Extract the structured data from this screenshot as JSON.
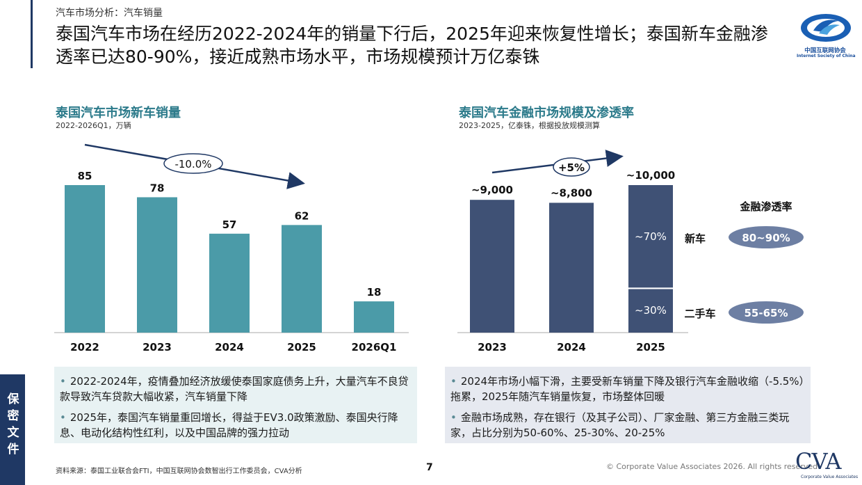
{
  "header": {
    "section_label": "汽车市场分析：汽车销量",
    "headline": "泰国汽车市场在经历2022-2024年的销量下行后，2025年迎来恢复性增长；泰国新车金融渗透率已达80-90%，接近成熟市场水平，市场规模预计万亿泰铢"
  },
  "logo": {
    "name_cn": "中国互联网协会",
    "name_en": "Internet Society of China"
  },
  "colors": {
    "left_bar": "#4b9ba8",
    "right_bar": "#3f5175",
    "pill": "#6d7fa3",
    "title_teal": "#2b7a8a",
    "navy": "#1f3864"
  },
  "chart_data": [
    {
      "type": "bar",
      "title": "泰国汽车市场新车销量",
      "subtitle": "2022-2026Q1，万辆",
      "categories": [
        "2022",
        "2023",
        "2024",
        "2025",
        "2026Q1"
      ],
      "values": [
        85,
        78,
        57,
        62,
        18
      ],
      "data_labels": [
        "85",
        "78",
        "57",
        "62",
        "18"
      ],
      "trend_label": "-10.0%",
      "grid": false,
      "legend": "none"
    },
    {
      "type": "bar",
      "title": "泰国汽车金融市场规模及渗透率",
      "subtitle": "2023-2025，亿泰铢，根据投放规模测算",
      "categories": [
        "2023",
        "2024",
        "2025"
      ],
      "values": [
        9000,
        8800,
        10000
      ],
      "data_labels": [
        "~9,000",
        "~8,800",
        "~10,000"
      ],
      "trend_label": "+5%",
      "split_2025": [
        {
          "label": "~70%",
          "share": 0.7
        },
        {
          "label": "~30%",
          "share": 0.3
        }
      ],
      "penetration_header": "金融渗透率",
      "penetration": [
        {
          "segment": "新车",
          "rate": "80~90%"
        },
        {
          "segment": "二手车",
          "rate": "55-65%"
        }
      ],
      "grid": false,
      "legend": "none"
    }
  ],
  "notes_left": [
    "2022-2024年，疫情叠加经济放缓使泰国家庭债务上升，大量汽车不良贷款导致汽车贷款大幅收紧，汽车销量下降",
    "2025年，泰国汽车销量重回增长，得益于EV3.0政策激励、泰国央行降息、电动化结构性红利，以及中国品牌的强力拉动"
  ],
  "notes_right": [
    "2024年市场小幅下滑，主要受新车销量下降及银行汽车金融收缩（-5.5%）拖累，2025年随汽车销量恢复，市场整体回暖",
    "金融市场成熟，存在银行（及其子公司）、厂家金融、第三方金融三类玩家，占比分别为50-60%、25-30%、20-25%"
  ],
  "footer": {
    "side_tab": "保密文件",
    "source": "资料来源：泰国工业联合会FTI，中国互联网协会数智出行工作委员会，CVA分析",
    "page": "7",
    "copyright": "© Corporate Value Associates 2026. All rights reserved",
    "brand": "CVA",
    "brand_sub": "Corporate Value Associates"
  }
}
